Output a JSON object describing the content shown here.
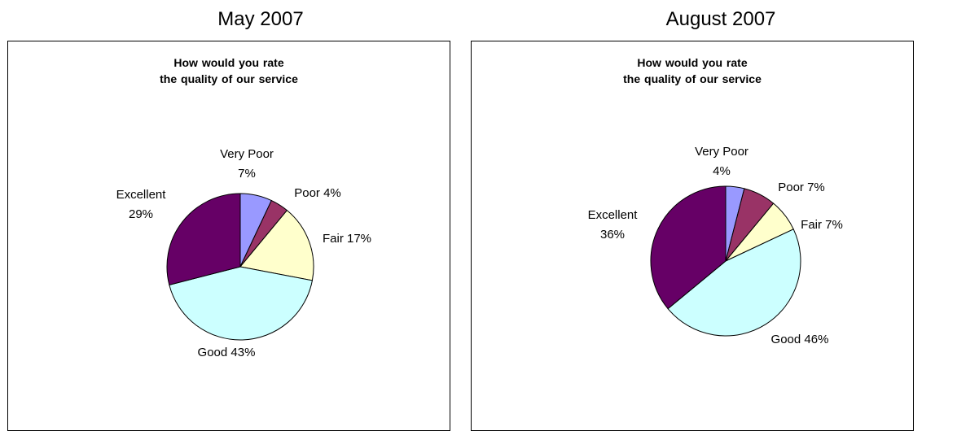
{
  "chart_data": [
    {
      "type": "pie",
      "period": "May 2007",
      "title_lines": [
        "How would you rate",
        "the quality of our service"
      ],
      "slices": [
        {
          "label": "Very Poor",
          "value": 7,
          "color": "#9999ff"
        },
        {
          "label": "Poor",
          "value": 4,
          "color": "#993366"
        },
        {
          "label": "Fair",
          "value": 17,
          "color": "#ffffcc"
        },
        {
          "label": "Good",
          "value": 43,
          "color": "#ccffff"
        },
        {
          "label": "Excellent",
          "value": 29,
          "color": "#660066"
        }
      ]
    },
    {
      "type": "pie",
      "period": "August 2007",
      "title_lines": [
        "How would you rate",
        "the quality of our service"
      ],
      "slices": [
        {
          "label": "Very Poor",
          "value": 4,
          "color": "#9999ff"
        },
        {
          "label": "Poor",
          "value": 7,
          "color": "#993366"
        },
        {
          "label": "Fair",
          "value": 7,
          "color": "#ffffcc"
        },
        {
          "label": "Good",
          "value": 46,
          "color": "#ccffff"
        },
        {
          "label": "Excellent",
          "value": 36,
          "color": "#660066"
        }
      ]
    }
  ]
}
